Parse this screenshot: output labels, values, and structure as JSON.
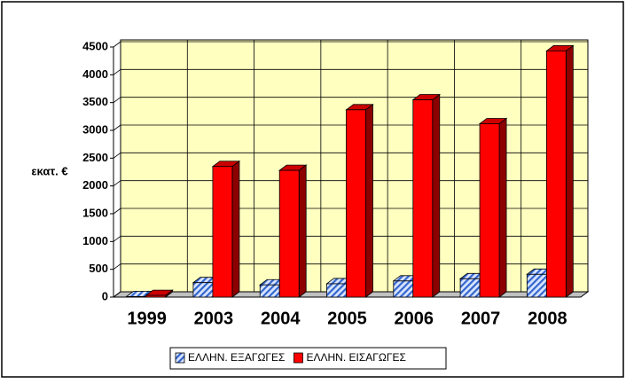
{
  "chart_data": {
    "type": "bar",
    "y_label": "εκατ. €",
    "categories": [
      "1999",
      "2003",
      "2004",
      "2005",
      "2006",
      "2007",
      "2008"
    ],
    "series": [
      {
        "name": "ΕΛΛΗΝ. ΕΞΑΓΩΓΕΣ",
        "color": "#3366cc",
        "values": [
          10,
          260,
          220,
          240,
          290,
          330,
          410
        ]
      },
      {
        "name": "ΕΛΛΗΝ. ΕΙΣΑΓΩΓΕΣ",
        "color": "#ff0000",
        "values": [
          30,
          2350,
          2280,
          3370,
          3550,
          3120,
          4430
        ]
      }
    ],
    "ylim": [
      0,
      4500
    ],
    "yticks": [
      0,
      500,
      1000,
      1500,
      2000,
      2500,
      3000,
      3500,
      4000,
      4500
    ],
    "grid": true,
    "legend": "bottom"
  }
}
